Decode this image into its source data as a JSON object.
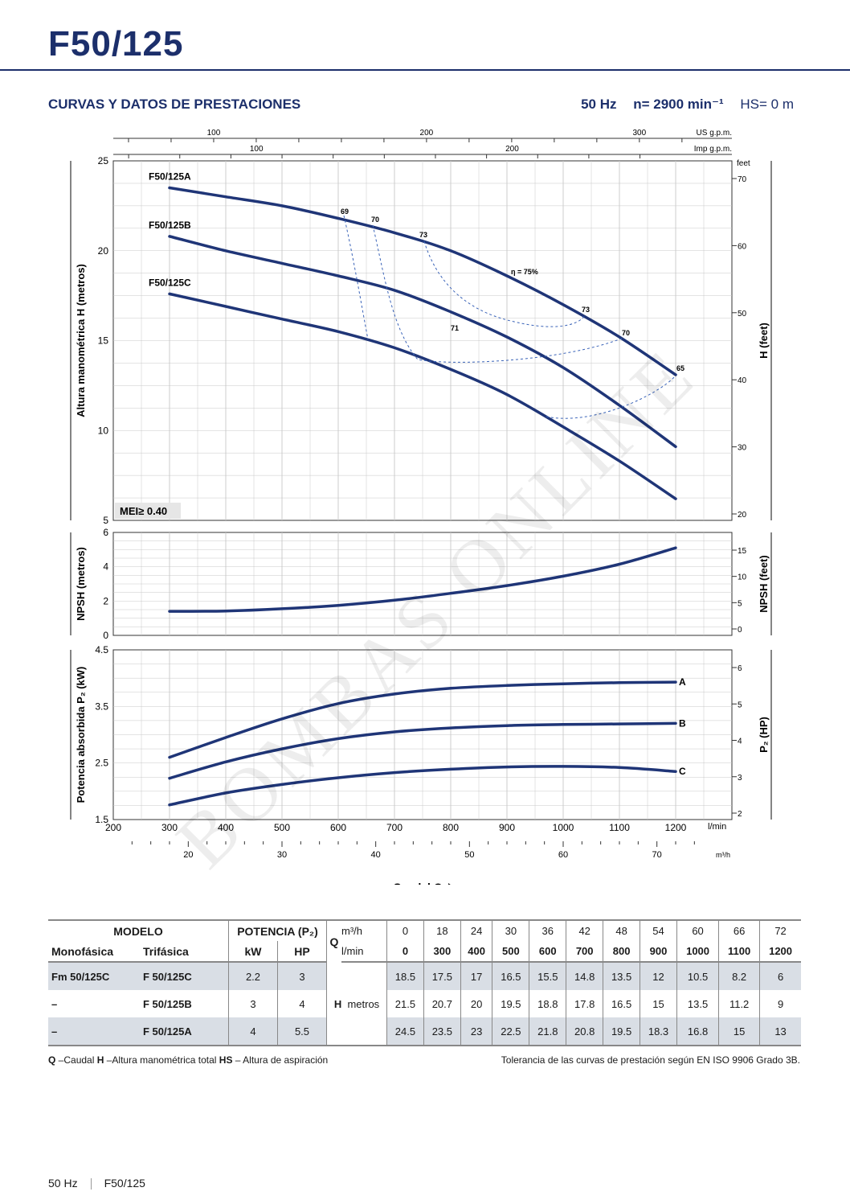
{
  "header": {
    "title": "F50/125",
    "section_title": "CURVAS Y DATOS DE PRESTACIONES",
    "freq": "50 Hz",
    "speed": "n= 2900 min⁻¹",
    "hs": "HS= 0 m"
  },
  "watermark": "BOMBAS ONLINE",
  "chart_data": [
    {
      "type": "line",
      "name": "head",
      "ylabel": "Altura manométrica H (metros)",
      "y2label": "H (feet)",
      "ylim": [
        5,
        25
      ],
      "yticks": [
        5,
        10,
        15,
        20,
        25
      ],
      "y2ticks": [
        20,
        30,
        40,
        50,
        60,
        70
      ],
      "y2_unit": "feet",
      "top_axis_us": {
        "label": "US g.p.m.",
        "ticks": [
          100,
          200,
          300
        ]
      },
      "top_axis_imp": {
        "label": "Imp g.p.m.",
        "ticks": [
          100,
          200
        ]
      },
      "annotation": "MEI≥ 0.40",
      "x": [
        300,
        400,
        500,
        600,
        700,
        800,
        900,
        1000,
        1100,
        1200
      ],
      "series": [
        {
          "name": "F50/125A",
          "values": [
            23.5,
            23.0,
            22.5,
            21.8,
            21.0,
            20.0,
            18.6,
            17.0,
            15.2,
            13.1
          ]
        },
        {
          "name": "F50/125B",
          "values": [
            20.8,
            20.0,
            19.3,
            18.6,
            17.8,
            16.6,
            15.2,
            13.5,
            11.4,
            9.1
          ]
        },
        {
          "name": "F50/125C",
          "values": [
            17.6,
            16.9,
            16.2,
            15.5,
            14.6,
            13.4,
            12.0,
            10.2,
            8.3,
            6.2
          ]
        }
      ],
      "efficiency_labels": [
        "69",
        "70",
        "73",
        "η = 75%",
        "73",
        "70",
        "65",
        "71"
      ]
    },
    {
      "type": "line",
      "name": "npsh",
      "ylabel": "NPSH (metros)",
      "y2label": "NPSH (feet)",
      "ylim": [
        0,
        6
      ],
      "yticks": [
        0,
        2,
        4,
        6
      ],
      "y2ticks": [
        0,
        5,
        10,
        15
      ],
      "x": [
        300,
        400,
        500,
        600,
        700,
        800,
        900,
        1000,
        1100,
        1200
      ],
      "series": [
        {
          "name": "NPSH",
          "values": [
            1.4,
            1.42,
            1.55,
            1.75,
            2.05,
            2.45,
            2.9,
            3.45,
            4.15,
            5.1
          ]
        }
      ]
    },
    {
      "type": "line",
      "name": "power",
      "ylabel": "Potencia absorbida P₂ (kW)",
      "y2label": "P₂ (HP)",
      "ylim": [
        1.5,
        4.5
      ],
      "yticks": [
        1.5,
        2.5,
        3.5,
        4.5
      ],
      "y2ticks": [
        2,
        3,
        4,
        5,
        6
      ],
      "x": [
        300,
        400,
        500,
        600,
        700,
        800,
        900,
        1000,
        1100,
        1200
      ],
      "xticks": [
        200,
        300,
        400,
        500,
        600,
        700,
        800,
        900,
        1000,
        1100,
        1200
      ],
      "x_unit": "l/min",
      "x2ticks": [
        20,
        30,
        40,
        50,
        60,
        70
      ],
      "x2_unit": "m³/h",
      "xlabel": "Caudal Q",
      "series": [
        {
          "name": "A",
          "values": [
            2.6,
            2.95,
            3.28,
            3.55,
            3.72,
            3.82,
            3.87,
            3.9,
            3.92,
            3.93
          ]
        },
        {
          "name": "B",
          "values": [
            2.23,
            2.52,
            2.75,
            2.93,
            3.05,
            3.12,
            3.16,
            3.18,
            3.19,
            3.2
          ]
        },
        {
          "name": "C",
          "values": [
            1.76,
            1.97,
            2.12,
            2.24,
            2.33,
            2.39,
            2.43,
            2.44,
            2.42,
            2.35
          ]
        }
      ]
    }
  ],
  "table": {
    "modelo": "MODELO",
    "potencia": "POTENCIA (P₂)",
    "q": "Q",
    "m3h": "m³/h",
    "lmin": "l/min",
    "monofasica": "Monofásica",
    "trifasica": "Trifásica",
    "kw": "kW",
    "hp": "HP",
    "h_label": "H",
    "metros": "metros",
    "m3h_values": [
      "0",
      "18",
      "24",
      "30",
      "36",
      "42",
      "48",
      "54",
      "60",
      "66",
      "72"
    ],
    "lmin_values": [
      "0",
      "300",
      "400",
      "500",
      "600",
      "700",
      "800",
      "900",
      "1000",
      "1100",
      "1200"
    ],
    "rows": [
      {
        "mono": "Fm 50/125C",
        "tri": "F 50/125C",
        "kw": "2.2",
        "hp": "3",
        "h": [
          "18.5",
          "17.5",
          "17",
          "16.5",
          "15.5",
          "14.8",
          "13.5",
          "12",
          "10.5",
          "8.2",
          "6"
        ]
      },
      {
        "mono": "–",
        "tri": "F 50/125B",
        "kw": "3",
        "hp": "4",
        "h": [
          "21.5",
          "20.7",
          "20",
          "19.5",
          "18.8",
          "17.8",
          "16.5",
          "15",
          "13.5",
          "11.2",
          "9"
        ]
      },
      {
        "mono": "–",
        "tri": "F 50/125A",
        "kw": "4",
        "hp": "5.5",
        "h": [
          "24.5",
          "23.5",
          "23",
          "22.5",
          "21.8",
          "20.8",
          "19.5",
          "18.3",
          "16.8",
          "15",
          "13"
        ]
      }
    ]
  },
  "legend": {
    "q": "Q",
    "q_text": " –Caudal ",
    "h": "H",
    "h_text": " –Altura manométrica total ",
    "hs": "HS",
    "hs_text": " – Altura de aspiración"
  },
  "tolerance": "Tolerancia de las curvas de prestación según EN ISO 9906 Grado 3B.",
  "footer": {
    "freq": "50 Hz",
    "model": "F50/125"
  },
  "colors": {
    "navy": "#1c2f6b",
    "curve": "#1f3577",
    "grid": "#c8c8c8",
    "shade": "#d9dee5"
  }
}
